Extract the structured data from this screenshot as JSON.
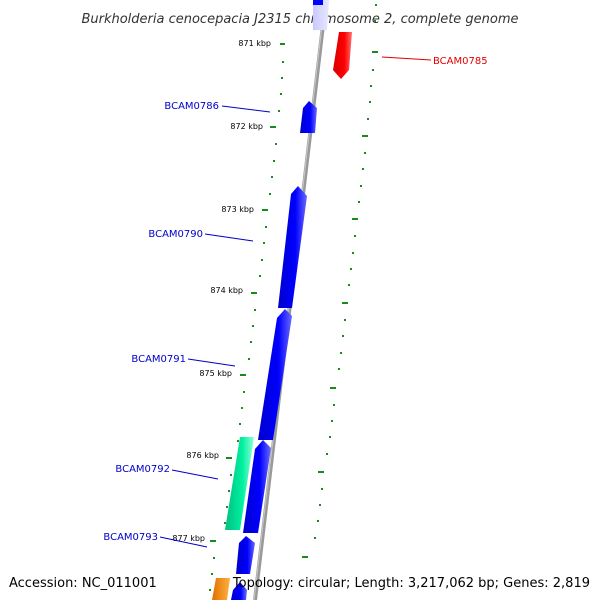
{
  "title": "Burkholderia cenocepacia J2315 chromosome 2, complete genome",
  "footer": {
    "accession": "Accession: NC_011001",
    "summary": "Topology: circular; Length: 3,217,062 bp; Genes: 2,819"
  },
  "scale_labels": [
    "871 kbp",
    "872 kbp",
    "873 kbp",
    "874 kbp",
    "875 kbp",
    "876 kbp",
    "877 kbp"
  ],
  "genes": [
    {
      "name": "BCAM0785",
      "strand": "minus",
      "color": "#ff0000",
      "labeled": true
    },
    {
      "name": "BCAM0786",
      "strand": "plus",
      "color": "#0000ff",
      "labeled": true
    },
    {
      "name": "BCAM0790",
      "strand": "plus",
      "color": "#0000ff",
      "labeled": true
    },
    {
      "name": "BCAM0791",
      "strand": "plus",
      "color": "#0000ff",
      "labeled": true
    },
    {
      "name": "BCAM0792",
      "strand": "plus",
      "color": "#00e69a",
      "labeled": true
    },
    {
      "name": "BCAM0793",
      "strand": "plus",
      "color": "#0000ff",
      "labeled": true
    }
  ],
  "colors": {
    "backbone": "#999999",
    "tick": "#1a8a1a",
    "plus_label": "#0000c8",
    "minus_label": "#e60000",
    "orange_gene": "#ff8c00"
  }
}
